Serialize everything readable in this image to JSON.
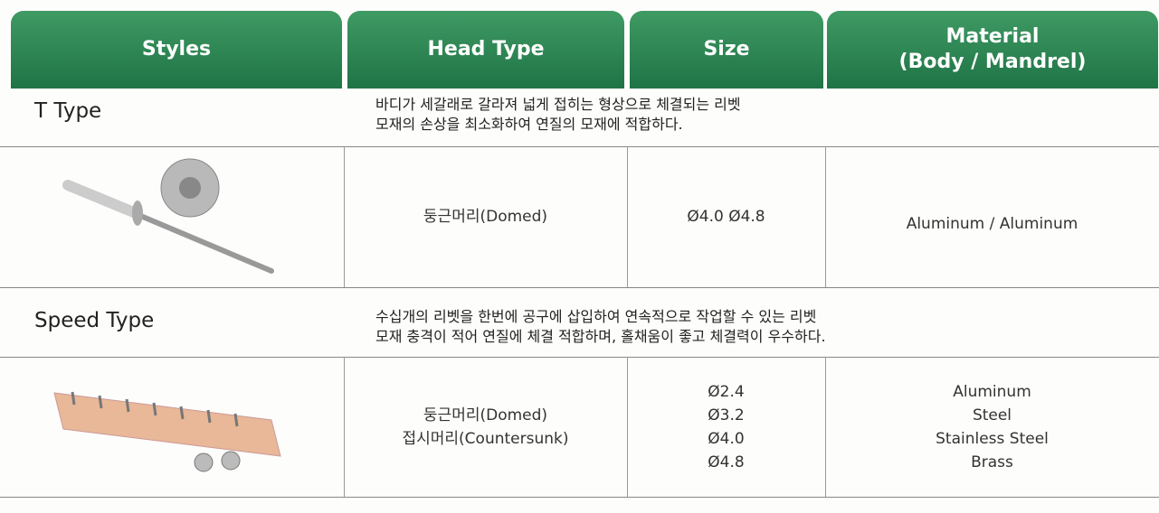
{
  "table": {
    "headers": [
      "Styles",
      "Head Type",
      "Size",
      [
        "Material",
        "(Body / Mandrel)"
      ]
    ],
    "rows": [
      {
        "style": "T Type",
        "description": [
          "바디가 세갈래로 갈라져 넓게 접히는 형상으로 체결되는 리벳",
          "모재의 손상을 최소화하여 연질의 모재에 적합하다."
        ],
        "head_type": [
          "둥근머리(Domed)"
        ],
        "size": [
          "Ø4.0 Ø4.8"
        ],
        "material": [
          "Aluminum / Aluminum"
        ]
      },
      {
        "style": "Speed Type",
        "description": [
          "수십개의 리벳을 한번에 공구에 삽입하여 연속적으로 작업할 수 있는 리벳",
          "모재 충격이 적어 연질에 체결 적합하며, 홀채움이 좋고 체결력이 우수하다."
        ],
        "head_type": [
          "둥근머리(Domed)",
          "접시머리(Countersunk)"
        ],
        "size": [
          "Ø2.4",
          "Ø3.2",
          "Ø4.0",
          "Ø4.8"
        ],
        "material": [
          "Aluminum",
          "Steel",
          "Stainless Steel",
          "Brass"
        ]
      }
    ]
  }
}
